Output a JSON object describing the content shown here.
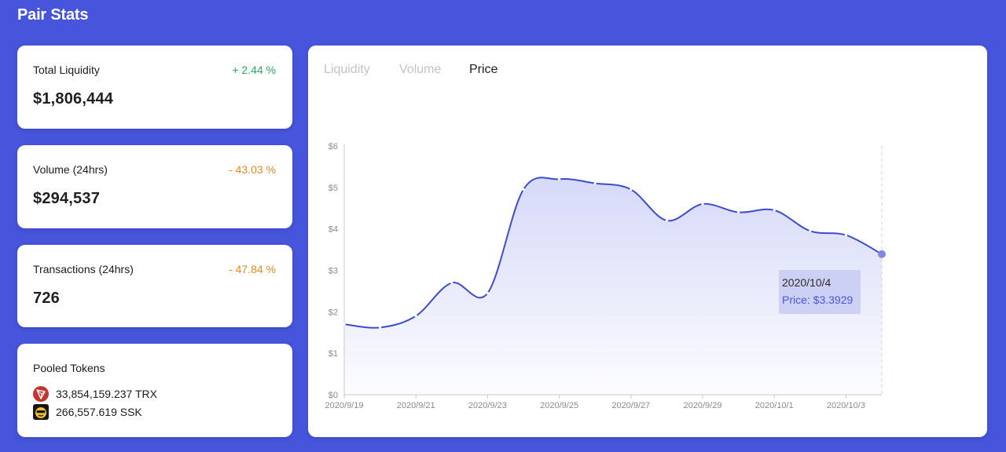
{
  "header": {
    "title": "Pair Stats"
  },
  "stats": {
    "liquidity": {
      "label": "Total Liquidity",
      "change": "+ 2.44 %",
      "value": "$1,806,444",
      "change_color": "#27ae60"
    },
    "volume": {
      "label": "Volume (24hrs)",
      "change": "- 43.03 %",
      "value": "$294,537",
      "change_color": "#e58a1f"
    },
    "transactions": {
      "label": "Transactions (24hrs)",
      "change": "- 47.84 %",
      "value": "726",
      "change_color": "#e58a1f"
    }
  },
  "pooled": {
    "label": "Pooled Tokens",
    "tokens": [
      {
        "amount": "33,854,159.237 TRX",
        "icon": "trx-token-icon"
      },
      {
        "amount": "266,557.619 SSK",
        "icon": "ssk-token-icon"
      }
    ]
  },
  "tabs": [
    {
      "label": "Liquidity",
      "active": false
    },
    {
      "label": "Volume",
      "active": false
    },
    {
      "label": "Price",
      "active": true
    }
  ],
  "tooltip": {
    "date": "2020/10/4",
    "price": "Price: $3.3929"
  },
  "colors": {
    "background": "#4655dc",
    "line": "#3d4ccf",
    "tooltip": "#c8cbf3"
  },
  "chart_data": {
    "type": "area",
    "y_ticks": [
      "$0",
      "$1",
      "$2",
      "$3",
      "$4",
      "$5",
      "$6"
    ],
    "ylim": [
      0,
      6
    ],
    "x_ticks": [
      "2020/9/19",
      "2020/9/21",
      "2020/9/23",
      "2020/9/25",
      "2020/9/27",
      "2020/9/29",
      "2020/10/1",
      "2020/10/3"
    ],
    "x": [
      "2020/9/19",
      "2020/9/20",
      "2020/9/21",
      "2020/9/22",
      "2020/9/23",
      "2020/9/24",
      "2020/9/25",
      "2020/9/26",
      "2020/9/27",
      "2020/9/28",
      "2020/9/29",
      "2020/9/30",
      "2020/10/1",
      "2020/10/2",
      "2020/10/3",
      "2020/10/4"
    ],
    "values": [
      1.7,
      1.62,
      1.9,
      2.7,
      2.45,
      4.95,
      5.2,
      5.1,
      4.95,
      4.2,
      4.6,
      4.4,
      4.45,
      3.95,
      3.85,
      3.39
    ],
    "grid": false
  }
}
